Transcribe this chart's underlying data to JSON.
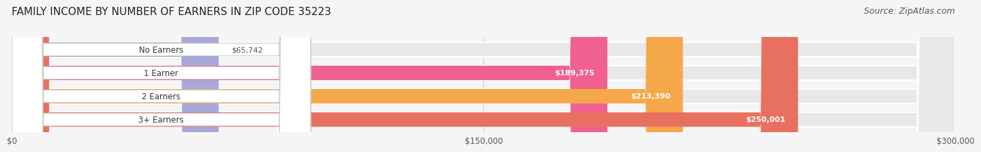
{
  "title": "FAMILY INCOME BY NUMBER OF EARNERS IN ZIP CODE 35223",
  "source": "Source: ZipAtlas.com",
  "categories": [
    "No Earners",
    "1 Earner",
    "2 Earners",
    "3+ Earners"
  ],
  "values": [
    65742,
    189375,
    213390,
    250001
  ],
  "bar_colors": [
    "#a8a8d8",
    "#f06090",
    "#f5a84a",
    "#e87060"
  ],
  "bar_bg_color": "#e8e8e8",
  "value_labels": [
    "$65,742",
    "$189,375",
    "$213,390",
    "$250,001"
  ],
  "label_colors": [
    "#555555",
    "#ffffff",
    "#ffffff",
    "#ffffff"
  ],
  "x_ticks": [
    0,
    150000,
    300000
  ],
  "x_tick_labels": [
    "$0",
    "$150,000",
    "$300,000"
  ],
  "xlim": [
    0,
    300000
  ],
  "title_fontsize": 11,
  "source_fontsize": 9,
  "background_color": "#f5f5f5"
}
